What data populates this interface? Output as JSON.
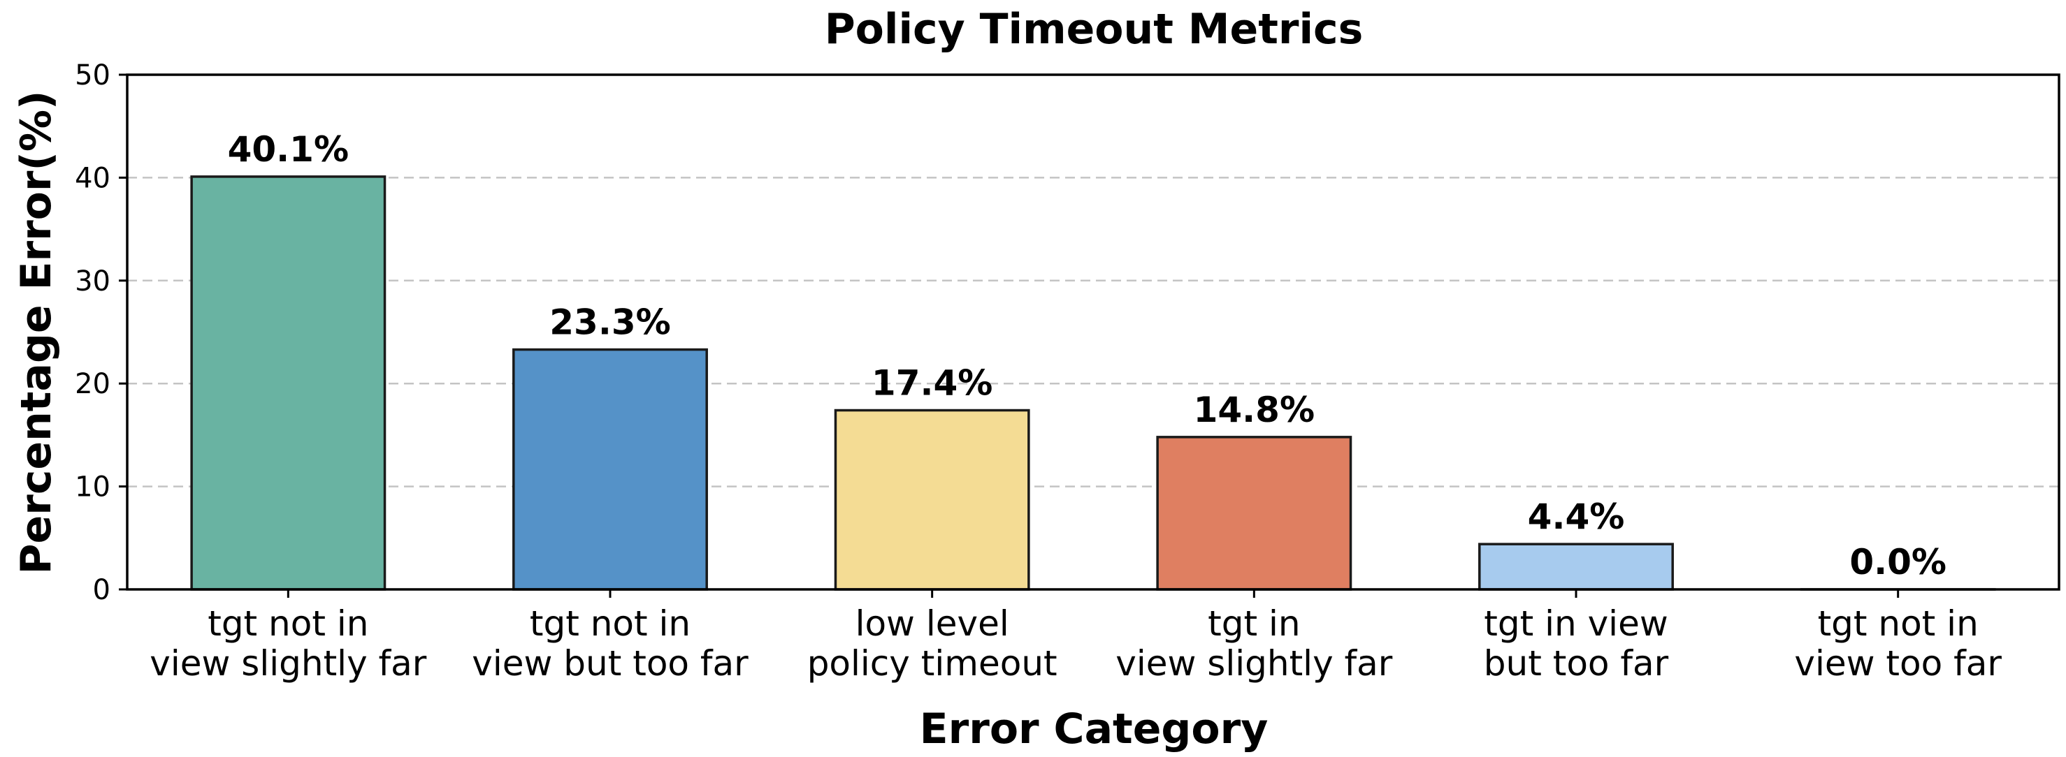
{
  "chart_data": {
    "type": "bar",
    "title": "Policy Timeout Metrics",
    "xlabel": "Error Category",
    "ylabel": "Percentage Error(%)",
    "categories": [
      [
        "tgt not in",
        "view slightly far"
      ],
      [
        "tgt not in",
        "view but too far"
      ],
      [
        "low level",
        "policy timeout"
      ],
      [
        "tgt in",
        "view slightly far"
      ],
      [
        "tgt in view",
        "but too far"
      ],
      [
        "tgt not in",
        "view too far"
      ]
    ],
    "values": [
      40.1,
      23.3,
      17.4,
      14.8,
      4.4,
      0.0
    ],
    "value_labels": [
      "40.1%",
      "23.3%",
      "17.4%",
      "14.8%",
      "4.4%",
      "0.0%"
    ],
    "colors": [
      "#69b3a2",
      "#5592c8",
      "#f4dc94",
      "#df7f61",
      "#a7cbee",
      "#e8e8e8"
    ],
    "ylim": [
      0,
      50
    ],
    "yticks": [
      0,
      10,
      20,
      30,
      40,
      50
    ],
    "grid": "y-dashed",
    "legend": "none"
  }
}
